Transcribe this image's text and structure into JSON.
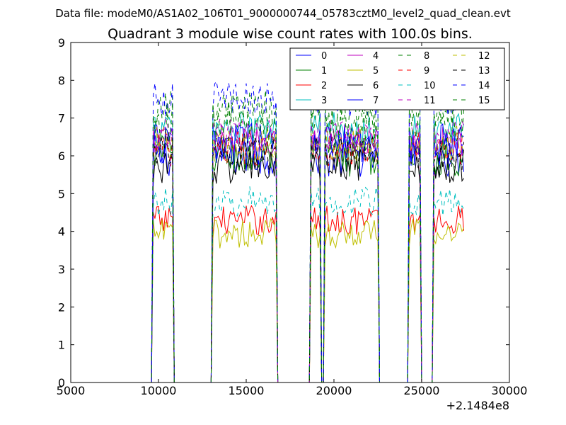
{
  "figure": {
    "suptitle": "Data file: modeM0/AS1A02_106T01_9000000744_05783cztM0_level2_quad_clean.evt"
  },
  "chart_data": {
    "type": "line",
    "title": "Quadrant 3 module wise count rates with 100.0s bins.",
    "xlabel": "",
    "ylabel": "",
    "xlim": [
      5000,
      30000
    ],
    "ylim": [
      0,
      9
    ],
    "x_offset_label": "+2.1484e8",
    "xticks": [
      5000,
      10000,
      15000,
      20000,
      25000,
      30000
    ],
    "xtick_labels": [
      "5000",
      "10000",
      "15000",
      "20000",
      "25000",
      "30000"
    ],
    "yticks": [
      0,
      1,
      2,
      3,
      4,
      5,
      6,
      7,
      8,
      9
    ],
    "ytick_labels": [
      "0",
      "1",
      "2",
      "3",
      "4",
      "5",
      "6",
      "7",
      "8",
      "9"
    ],
    "grid": false,
    "legend_position": "top-right",
    "bin_size_s": 100,
    "segments": [
      {
        "start": 9700,
        "end": 10800
      },
      {
        "start": 13100,
        "end": 16700
      },
      {
        "start": 18700,
        "end": 19200
      },
      {
        "start": 19500,
        "end": 22500
      },
      {
        "start": 24300,
        "end": 24900
      },
      {
        "start": 25700,
        "end": 27400
      }
    ],
    "series": [
      {
        "name": "0",
        "color": "#0000ff",
        "dash": "solid",
        "level": 6.0,
        "noise": 0.35
      },
      {
        "name": "1",
        "color": "#008000",
        "dash": "solid",
        "level": 6.0,
        "noise": 0.35
      },
      {
        "name": "2",
        "color": "#ff0000",
        "dash": "solid",
        "level": 4.3,
        "noise": 0.25
      },
      {
        "name": "3",
        "color": "#00bfbf",
        "dash": "solid",
        "level": 6.7,
        "noise": 0.3
      },
      {
        "name": "4",
        "color": "#bf00bf",
        "dash": "solid",
        "level": 6.4,
        "noise": 0.25
      },
      {
        "name": "5",
        "color": "#bfbf00",
        "dash": "solid",
        "level": 3.95,
        "noise": 0.25
      },
      {
        "name": "6",
        "color": "#000000",
        "dash": "solid",
        "level": 5.7,
        "noise": 0.3
      },
      {
        "name": "7",
        "color": "#0000ff",
        "dash": "solid",
        "level": 6.3,
        "noise": 0.35
      },
      {
        "name": "8",
        "color": "#008000",
        "dash": "dashed",
        "level": 7.2,
        "noise": 0.35
      },
      {
        "name": "9",
        "color": "#ff0000",
        "dash": "dashed",
        "level": 6.2,
        "noise": 0.3
      },
      {
        "name": "10",
        "color": "#00bfbf",
        "dash": "dashed",
        "level": 4.8,
        "noise": 0.25
      },
      {
        "name": "11",
        "color": "#bf00bf",
        "dash": "dashed",
        "level": 6.6,
        "noise": 0.25
      },
      {
        "name": "12",
        "color": "#bfbf00",
        "dash": "dashed",
        "level": 6.3,
        "noise": 0.3
      },
      {
        "name": "13",
        "color": "#000000",
        "dash": "dashed",
        "level": 6.1,
        "noise": 0.3
      },
      {
        "name": "14",
        "color": "#0000ff",
        "dash": "dashed",
        "level": 7.5,
        "noise": 0.3
      },
      {
        "name": "15",
        "color": "#008000",
        "dash": "dashed",
        "level": 6.9,
        "noise": 0.35
      }
    ]
  }
}
